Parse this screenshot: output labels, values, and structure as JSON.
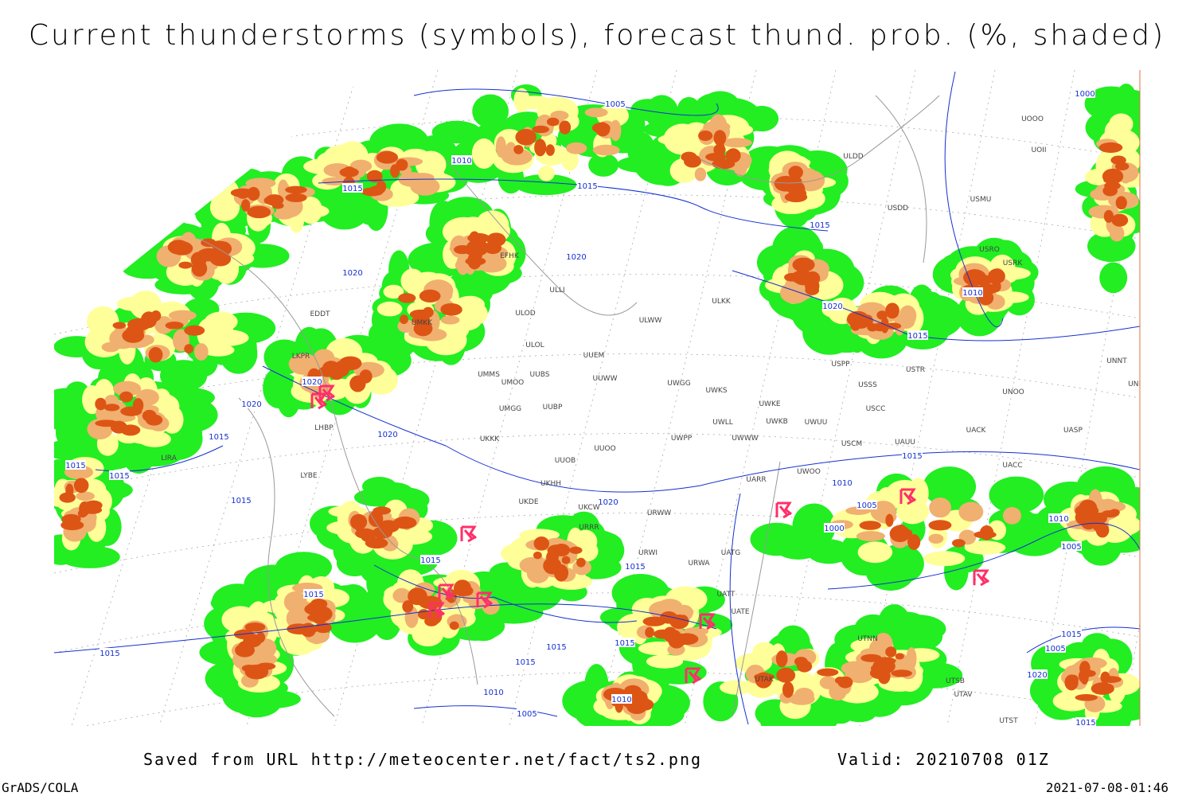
{
  "header": {
    "title": "Current thunderstorms (symbols), forecast thund. prob. (%, shaded)"
  },
  "map": {
    "isobar_labels": [
      1005,
      1010,
      1015,
      1015,
      1020,
      1020,
      1015,
      1020,
      1020,
      1015,
      1015,
      1015,
      1015,
      1020,
      1020,
      1015,
      1015,
      1020,
      1010,
      1000,
      1010,
      1005,
      1000,
      1010,
      1005,
      1015,
      1015,
      1015,
      1015,
      1015,
      1015,
      1015,
      1010,
      1010,
      1005,
      1015,
      1005,
      1020,
      1015
    ],
    "station_labels": [
      "ULDD",
      "USDD",
      "USMU",
      "UOOO",
      "UOII",
      "USRO",
      "USRK",
      "ULKK",
      "ULWW",
      "ULOD",
      "ULOL",
      "UUEM",
      "UUWW",
      "UMMS",
      "UMOO",
      "UUBS",
      "UMGG",
      "UUBP",
      "UWGG",
      "UWKS",
      "UWKE",
      "UWKB",
      "UWUU",
      "UWLL",
      "UWWW",
      "UWPP",
      "USPP",
      "USTR",
      "USSS",
      "USCC",
      "USCM",
      "UAUU",
      "UACK",
      "UASP",
      "UNOO",
      "UNNT",
      "UNBB",
      "UACC",
      "UUOO",
      "UUOB",
      "UKKK",
      "UKHH",
      "UKDE",
      "UKCW",
      "URWW",
      "URRR",
      "URWI",
      "URWA",
      "UATG",
      "UATT",
      "UATE",
      "UTNN",
      "UTAK",
      "UTSB",
      "UTAV",
      "UTST",
      "UWOO",
      "UARR",
      "LIRA",
      "LYBE",
      "LHBP",
      "LKPR",
      "EDDT",
      "EFHK",
      "ULLI",
      "UMKK"
    ]
  },
  "footer": {
    "source": "Saved from URL http://meteocenter.net/fact/ts2.png",
    "valid": "Valid: 20210708 01Z",
    "software": "GrADS/COLA",
    "timestamp": "2021-07-08-01:46"
  }
}
